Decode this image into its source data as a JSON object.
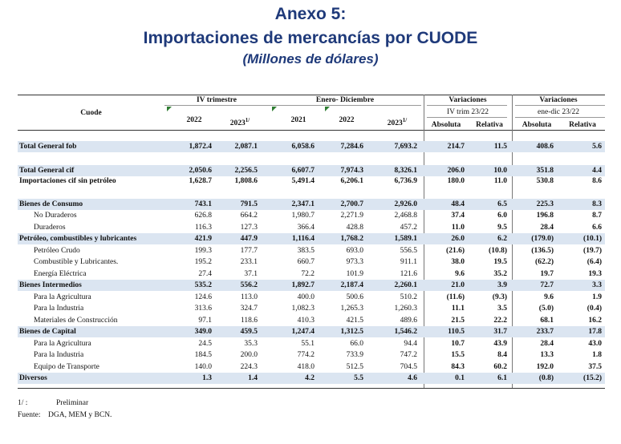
{
  "title": {
    "line1": "Anexo 5:",
    "line2": "Importaciones de mercancías por CUODE",
    "line3": "(Millones de dólares)"
  },
  "headers": {
    "cuode": "Cuode",
    "iv_trimestre": "IV trimestre",
    "enero_dic": "Enero- Diciembre",
    "variaciones1": "Variaciones",
    "variaciones1_sub": "IV trim 23/22",
    "variaciones2": "Variaciones",
    "variaciones2_sub": "ene-dic 23/22",
    "y2022a": "2022",
    "y2023a": "2023",
    "y2023a_sup": "1/",
    "y2021": "2021",
    "y2022b": "2022",
    "y2023b": "2023",
    "y2023b_sup": "1/",
    "absoluta1": "Absoluta",
    "relativa1": "Relativa",
    "absoluta2": "Absoluta",
    "relativa2": "Relativa"
  },
  "rows": [
    {
      "label": "Total General fob",
      "bold": true,
      "vals": [
        "1,872.4",
        "2,087.1",
        "6,058.6",
        "7,284.6",
        "7,693.2",
        "214.7",
        "11.5",
        "408.6",
        "5.6"
      ]
    },
    {
      "label": "Total General cif",
      "bold": true,
      "vals": [
        "2,050.6",
        "2,256.5",
        "6,607.7",
        "7,974.3",
        "8,326.1",
        "206.0",
        "10.0",
        "351.8",
        "4.4"
      ]
    },
    {
      "label": "Importaciones cif sin petróleo",
      "bold": true,
      "vals": [
        "1,628.7",
        "1,808.6",
        "5,491.4",
        "6,206.1",
        "6,736.9",
        "180.0",
        "11.0",
        "530.8",
        "8.6"
      ]
    },
    {
      "label": "Bienes de Consumo",
      "bold": true,
      "vals": [
        "743.1",
        "791.5",
        "2,347.1",
        "2,700.7",
        "2,926.0",
        "48.4",
        "6.5",
        "225.3",
        "8.3"
      ]
    },
    {
      "label": "No Duraderos",
      "bold": false,
      "vals": [
        "626.8",
        "664.2",
        "1,980.7",
        "2,271.9",
        "2,468.8",
        "37.4",
        "6.0",
        "196.8",
        "8.7"
      ]
    },
    {
      "label": "Duraderos",
      "bold": false,
      "vals": [
        "116.3",
        "127.3",
        "366.4",
        "428.8",
        "457.2",
        "11.0",
        "9.5",
        "28.4",
        "6.6"
      ]
    },
    {
      "label": "Petróleo, combustibles y lubricantes",
      "bold": true,
      "vals": [
        "421.9",
        "447.9",
        "1,116.4",
        "1,768.2",
        "1,589.1",
        "26.0",
        "6.2",
        "(179.0)",
        "(10.1)"
      ]
    },
    {
      "label": "Petróleo Crudo",
      "bold": false,
      "vals": [
        "199.3",
        "177.7",
        "383.5",
        "693.0",
        "556.5",
        "(21.6)",
        "(10.8)",
        "(136.5)",
        "(19.7)"
      ]
    },
    {
      "label": "Combustible  y Lubricantes.",
      "bold": false,
      "vals": [
        "195.2",
        "233.1",
        "660.7",
        "973.3",
        "911.1",
        "38.0",
        "19.5",
        "(62.2)",
        "(6.4)"
      ]
    },
    {
      "label": "Energía Eléctrica",
      "bold": false,
      "vals": [
        "27.4",
        "37.1",
        "72.2",
        "101.9",
        "121.6",
        "9.6",
        "35.2",
        "19.7",
        "19.3"
      ]
    },
    {
      "label": "Bienes Intermedios",
      "bold": true,
      "vals": [
        "535.2",
        "556.2",
        "1,892.7",
        "2,187.4",
        "2,260.1",
        "21.0",
        "3.9",
        "72.7",
        "3.3"
      ]
    },
    {
      "label": "Para la Agricultura",
      "bold": false,
      "vals": [
        "124.6",
        "113.0",
        "400.0",
        "500.6",
        "510.2",
        "(11.6)",
        "(9.3)",
        "9.6",
        "1.9"
      ]
    },
    {
      "label": "Para la Industria",
      "bold": false,
      "vals": [
        "313.6",
        "324.7",
        "1,082.3",
        "1,265.3",
        "1,260.3",
        "11.1",
        "3.5",
        "(5.0)",
        "(0.4)"
      ]
    },
    {
      "label": "Materiales de Construcción",
      "bold": false,
      "vals": [
        "97.1",
        "118.6",
        "410.3",
        "421.5",
        "489.6",
        "21.5",
        "22.2",
        "68.1",
        "16.2"
      ]
    },
    {
      "label": "Bienes de Capital",
      "bold": true,
      "vals": [
        "349.0",
        "459.5",
        "1,247.4",
        "1,312.5",
        "1,546.2",
        "110.5",
        "31.7",
        "233.7",
        "17.8"
      ]
    },
    {
      "label": "Para la Agricultura",
      "bold": false,
      "vals": [
        "24.5",
        "35.3",
        "55.1",
        "66.0",
        "94.4",
        "10.7",
        "43.9",
        "28.4",
        "43.0"
      ]
    },
    {
      "label": "Para la Industria",
      "bold": false,
      "vals": [
        "184.5",
        "200.0",
        "774.2",
        "733.9",
        "747.2",
        "15.5",
        "8.4",
        "13.3",
        "1.8"
      ]
    },
    {
      "label": "Equipo de Transporte",
      "bold": false,
      "vals": [
        "140.0",
        "224.3",
        "418.0",
        "512.5",
        "704.5",
        "84.3",
        "60.2",
        "192.0",
        "37.5"
      ]
    },
    {
      "label": "Diversos",
      "bold": true,
      "vals": [
        "1.3",
        "1.4",
        "4.2",
        "5.5",
        "4.6",
        "0.1",
        "6.1",
        "(0.8)",
        "(15.2)"
      ]
    }
  ],
  "notes": {
    "n1_key": "1/ :",
    "n1_text": "Preliminar",
    "n2_key": "Fuente:",
    "n2_text": "DGA, MEM y BCN."
  }
}
